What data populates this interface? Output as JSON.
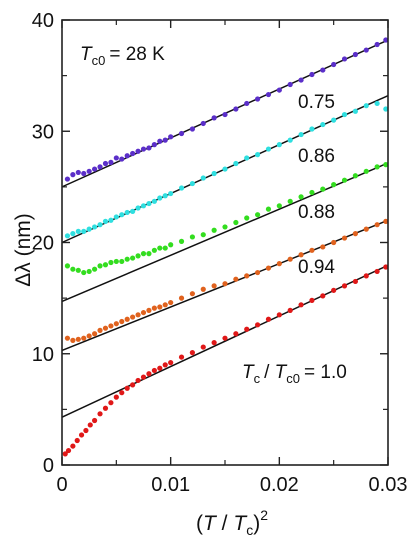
{
  "chart_data": {
    "type": "scatter",
    "title": "",
    "xlabel": "",
    "ylabel": "",
    "xlim": [
      0,
      0.03
    ],
    "ylim": [
      0,
      40
    ],
    "x_ticks": [
      "0",
      "0.01",
      "0.02",
      "0.03"
    ],
    "y_ticks": [
      "0",
      "10",
      "20",
      "30",
      "40"
    ],
    "x_tick_values": [
      0,
      0.01,
      0.02,
      0.03
    ],
    "y_tick_values": [
      0,
      10,
      20,
      30,
      40
    ],
    "grid": false,
    "annotation_tc0": "= 28 K",
    "annotation_tc_ratio": "= 1.0",
    "series": [
      {
        "label": "0.75",
        "color": "#5b2fc9",
        "fit": {
          "intercept": 25.0,
          "slope": 440
        },
        "points": [
          [
            0.0005,
            25.7
          ],
          [
            0.001,
            26.1
          ],
          [
            0.0015,
            26.3
          ],
          [
            0.002,
            26.2
          ],
          [
            0.0025,
            26.4
          ],
          [
            0.003,
            26.6
          ],
          [
            0.0035,
            26.8
          ],
          [
            0.004,
            27.1
          ],
          [
            0.0045,
            27.2
          ],
          [
            0.005,
            27.6
          ],
          [
            0.0055,
            27.5
          ],
          [
            0.006,
            27.8
          ],
          [
            0.0065,
            28.0
          ],
          [
            0.007,
            28.2
          ],
          [
            0.0075,
            28.4
          ],
          [
            0.008,
            28.5
          ],
          [
            0.0085,
            28.8
          ],
          [
            0.009,
            29.1
          ],
          [
            0.0095,
            29.2
          ],
          [
            0.01,
            29.5
          ],
          [
            0.011,
            29.8
          ],
          [
            0.012,
            30.2
          ],
          [
            0.013,
            30.7
          ],
          [
            0.014,
            31.2
          ],
          [
            0.015,
            31.5
          ],
          [
            0.016,
            32.0
          ],
          [
            0.017,
            32.5
          ],
          [
            0.018,
            32.9
          ],
          [
            0.019,
            33.3
          ],
          [
            0.02,
            33.7
          ],
          [
            0.021,
            34.2
          ],
          [
            0.022,
            34.6
          ],
          [
            0.023,
            35.1
          ],
          [
            0.024,
            35.5
          ],
          [
            0.025,
            36.0
          ],
          [
            0.026,
            36.5
          ],
          [
            0.027,
            36.9
          ],
          [
            0.028,
            37.3
          ],
          [
            0.029,
            37.8
          ],
          [
            0.0298,
            38.2
          ]
        ]
      },
      {
        "label": "0.86",
        "color": "#2fdfe0",
        "fit": {
          "intercept": 20.0,
          "slope": 440
        },
        "points": [
          [
            0.0005,
            20.6
          ],
          [
            0.001,
            20.8
          ],
          [
            0.0015,
            21.0
          ],
          [
            0.002,
            21.0
          ],
          [
            0.0025,
            21.2
          ],
          [
            0.003,
            21.4
          ],
          [
            0.0035,
            21.6
          ],
          [
            0.004,
            21.9
          ],
          [
            0.0045,
            22.0
          ],
          [
            0.005,
            22.3
          ],
          [
            0.0055,
            22.5
          ],
          [
            0.006,
            22.7
          ],
          [
            0.0065,
            22.8
          ],
          [
            0.007,
            23.1
          ],
          [
            0.0075,
            23.3
          ],
          [
            0.008,
            23.5
          ],
          [
            0.0085,
            23.7
          ],
          [
            0.009,
            24.0
          ],
          [
            0.0095,
            24.2
          ],
          [
            0.01,
            24.4
          ],
          [
            0.011,
            24.9
          ],
          [
            0.012,
            25.3
          ],
          [
            0.013,
            25.8
          ],
          [
            0.014,
            26.2
          ],
          [
            0.015,
            26.6
          ],
          [
            0.016,
            27.1
          ],
          [
            0.017,
            27.6
          ],
          [
            0.018,
            27.9
          ],
          [
            0.019,
            28.4
          ],
          [
            0.02,
            28.8
          ],
          [
            0.021,
            29.2
          ],
          [
            0.022,
            29.7
          ],
          [
            0.023,
            30.2
          ],
          [
            0.024,
            30.6
          ],
          [
            0.025,
            31.0
          ],
          [
            0.026,
            31.5
          ],
          [
            0.027,
            31.8
          ],
          [
            0.028,
            32.3
          ],
          [
            0.029,
            32.5
          ],
          [
            0.0298,
            32.0
          ]
        ]
      },
      {
        "label": "0.88",
        "color": "#33dd1f",
        "fit": {
          "intercept": 14.7,
          "slope": 415
        },
        "points": [
          [
            0.0005,
            17.9
          ],
          [
            0.001,
            17.6
          ],
          [
            0.0015,
            17.5
          ],
          [
            0.002,
            17.3
          ],
          [
            0.0025,
            17.4
          ],
          [
            0.003,
            17.6
          ],
          [
            0.0035,
            17.9
          ],
          [
            0.004,
            18.0
          ],
          [
            0.0045,
            18.2
          ],
          [
            0.005,
            18.3
          ],
          [
            0.0055,
            18.3
          ],
          [
            0.006,
            18.5
          ],
          [
            0.0065,
            18.6
          ],
          [
            0.007,
            18.8
          ],
          [
            0.0075,
            19.0
          ],
          [
            0.008,
            19.0
          ],
          [
            0.0085,
            19.3
          ],
          [
            0.009,
            19.5
          ],
          [
            0.0095,
            19.5
          ],
          [
            0.01,
            19.8
          ],
          [
            0.011,
            20.1
          ],
          [
            0.012,
            20.5
          ],
          [
            0.013,
            20.7
          ],
          [
            0.014,
            21.1
          ],
          [
            0.015,
            21.4
          ],
          [
            0.016,
            21.8
          ],
          [
            0.017,
            22.2
          ],
          [
            0.018,
            22.5
          ],
          [
            0.019,
            23.0
          ],
          [
            0.02,
            23.3
          ],
          [
            0.021,
            23.7
          ],
          [
            0.022,
            24.1
          ],
          [
            0.023,
            24.5
          ],
          [
            0.024,
            24.8
          ],
          [
            0.025,
            25.2
          ],
          [
            0.026,
            25.6
          ],
          [
            0.027,
            26.0
          ],
          [
            0.028,
            26.4
          ],
          [
            0.029,
            26.8
          ],
          [
            0.0298,
            27.0
          ]
        ]
      },
      {
        "label": "0.94",
        "color": "#e0621e",
        "fit": {
          "intercept": 10.3,
          "slope": 390
        },
        "points": [
          [
            0.0005,
            11.4
          ],
          [
            0.001,
            11.2
          ],
          [
            0.0015,
            11.3
          ],
          [
            0.002,
            11.4
          ],
          [
            0.0025,
            11.6
          ],
          [
            0.003,
            11.8
          ],
          [
            0.0035,
            12.1
          ],
          [
            0.004,
            12.3
          ],
          [
            0.0045,
            12.5
          ],
          [
            0.005,
            12.7
          ],
          [
            0.0055,
            12.9
          ],
          [
            0.006,
            13.1
          ],
          [
            0.0065,
            13.3
          ],
          [
            0.007,
            13.5
          ],
          [
            0.0075,
            13.7
          ],
          [
            0.008,
            13.9
          ],
          [
            0.0085,
            14.1
          ],
          [
            0.009,
            14.2
          ],
          [
            0.0095,
            14.4
          ],
          [
            0.01,
            14.6
          ],
          [
            0.011,
            15.0
          ],
          [
            0.012,
            15.4
          ],
          [
            0.013,
            15.8
          ],
          [
            0.014,
            16.1
          ],
          [
            0.015,
            16.3
          ],
          [
            0.016,
            16.7
          ],
          [
            0.017,
            17.0
          ],
          [
            0.018,
            17.3
          ],
          [
            0.019,
            17.7
          ],
          [
            0.02,
            18.1
          ],
          [
            0.021,
            18.5
          ],
          [
            0.022,
            18.9
          ],
          [
            0.023,
            19.3
          ],
          [
            0.024,
            19.6
          ],
          [
            0.025,
            20.0
          ],
          [
            0.026,
            20.4
          ],
          [
            0.027,
            20.8
          ],
          [
            0.028,
            21.2
          ],
          [
            0.029,
            21.6
          ],
          [
            0.0298,
            21.9
          ]
        ]
      },
      {
        "label": "1.0",
        "color": "#e01818",
        "fit": {
          "intercept": 4.3,
          "slope": 455
        },
        "points": [
          [
            0.0003,
            1.0
          ],
          [
            0.0006,
            1.3
          ],
          [
            0.001,
            1.7
          ],
          [
            0.0014,
            2.2
          ],
          [
            0.0018,
            2.7
          ],
          [
            0.0022,
            3.1
          ],
          [
            0.0026,
            3.6
          ],
          [
            0.003,
            4.0
          ],
          [
            0.0035,
            4.6
          ],
          [
            0.004,
            5.1
          ],
          [
            0.0045,
            5.6
          ],
          [
            0.005,
            6.1
          ],
          [
            0.0055,
            6.5
          ],
          [
            0.006,
            6.9
          ],
          [
            0.0065,
            7.2
          ],
          [
            0.007,
            7.6
          ],
          [
            0.0075,
            7.9
          ],
          [
            0.008,
            8.2
          ],
          [
            0.0085,
            8.5
          ],
          [
            0.009,
            8.7
          ],
          [
            0.0095,
            9.0
          ],
          [
            0.01,
            9.2
          ],
          [
            0.011,
            9.7
          ],
          [
            0.012,
            10.1
          ],
          [
            0.013,
            10.6
          ],
          [
            0.014,
            11.0
          ],
          [
            0.015,
            11.4
          ],
          [
            0.016,
            11.8
          ],
          [
            0.017,
            12.2
          ],
          [
            0.018,
            12.6
          ],
          [
            0.019,
            13.1
          ],
          [
            0.02,
            13.5
          ],
          [
            0.021,
            13.9
          ],
          [
            0.022,
            14.4
          ],
          [
            0.023,
            14.8
          ],
          [
            0.024,
            15.2
          ],
          [
            0.025,
            15.7
          ],
          [
            0.026,
            16.1
          ],
          [
            0.027,
            16.5
          ],
          [
            0.028,
            17.0
          ],
          [
            0.029,
            17.4
          ],
          [
            0.0298,
            17.8
          ]
        ]
      }
    ]
  }
}
